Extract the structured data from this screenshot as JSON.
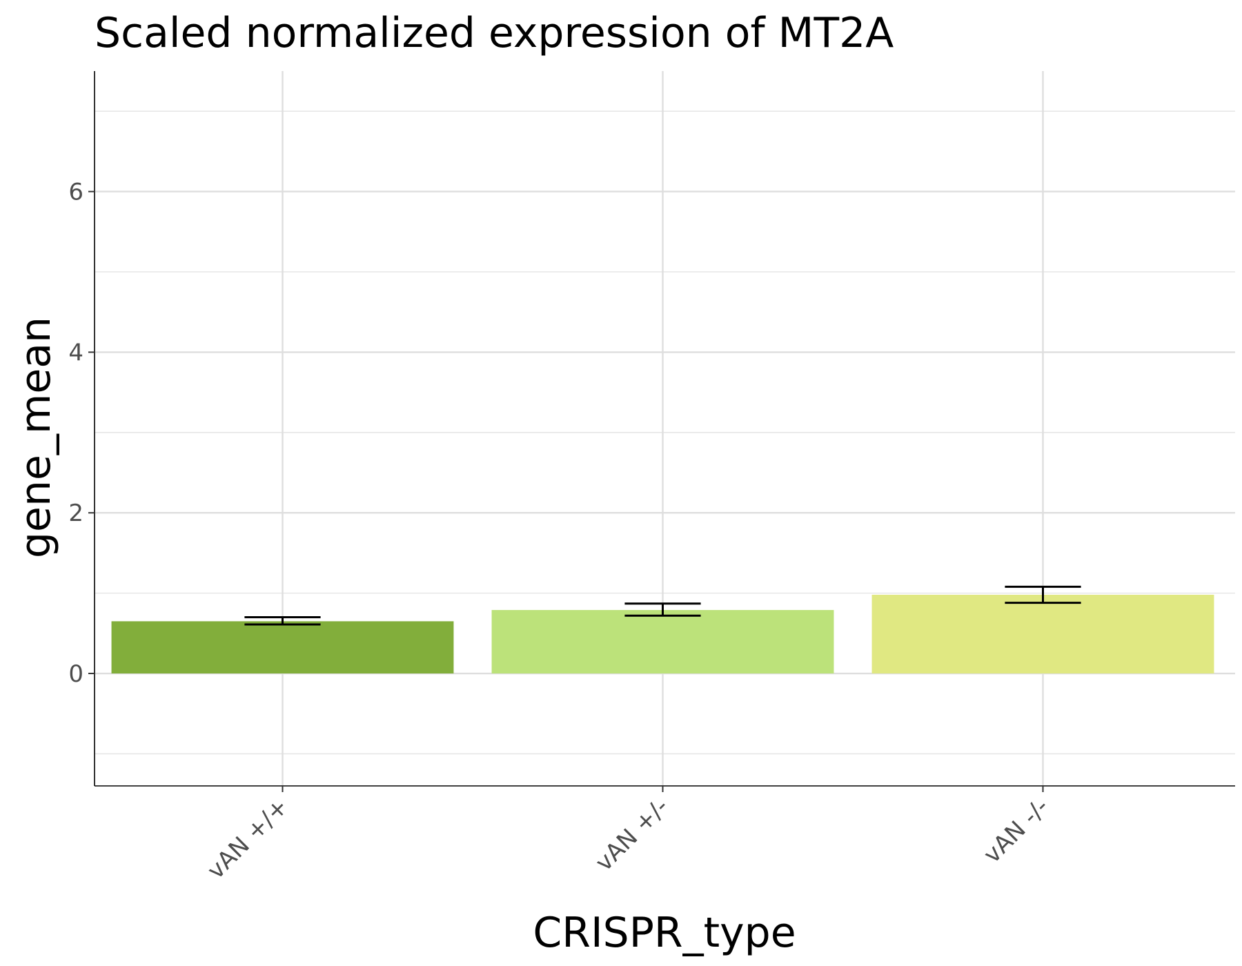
{
  "chart_data": {
    "type": "bar",
    "title": "Scaled normalized expression of MT2A",
    "xlabel": "CRISPR_type",
    "ylabel": "gene_mean",
    "categories": [
      "vAN +/+",
      "vAN +/-",
      "vAN -/-"
    ],
    "values": [
      0.65,
      0.79,
      0.98
    ],
    "error_low": [
      0.61,
      0.72,
      0.88
    ],
    "error_high": [
      0.7,
      0.87,
      1.08
    ],
    "colors": [
      "#82ae3b",
      "#bce27a",
      "#e0e882"
    ],
    "ylim": [
      -1.4,
      7.5
    ],
    "yticks": [
      0,
      2,
      4,
      6
    ],
    "ytick_labels": [
      "0",
      "2",
      "4",
      "6"
    ],
    "grid": true,
    "legend": false
  }
}
